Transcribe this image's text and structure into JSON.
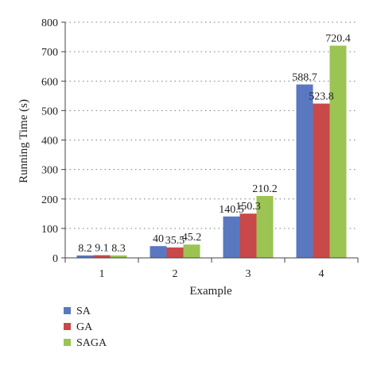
{
  "chart_data": {
    "type": "bar",
    "categories": [
      "1",
      "2",
      "3",
      "4"
    ],
    "series": [
      {
        "name": "SA",
        "values": [
          8.2,
          40,
          140.5,
          588.7
        ],
        "color": "#5a78c0"
      },
      {
        "name": "GA",
        "values": [
          9.1,
          35.5,
          150.3,
          523.8
        ],
        "color": "#c9484a"
      },
      {
        "name": "SAGA",
        "values": [
          8.3,
          45.2,
          210.2,
          720.4
        ],
        "color": "#9bc453"
      }
    ],
    "data_labels": [
      [
        "8.2",
        "9.1",
        "8.3"
      ],
      [
        "40",
        "35.5",
        "45.2"
      ],
      [
        "140.5",
        "150.3",
        "210.2"
      ],
      [
        "588.7",
        "523.8",
        "720.4"
      ]
    ],
    "title": "",
    "xlabel": "Example",
    "ylabel": "Running Time (s)",
    "ylim": [
      0,
      800
    ],
    "yticks": [
      "0",
      "100",
      "200",
      "300",
      "400",
      "500",
      "600",
      "700",
      "800"
    ],
    "grid": "horizontal dotted",
    "legend": "bottom-left"
  }
}
